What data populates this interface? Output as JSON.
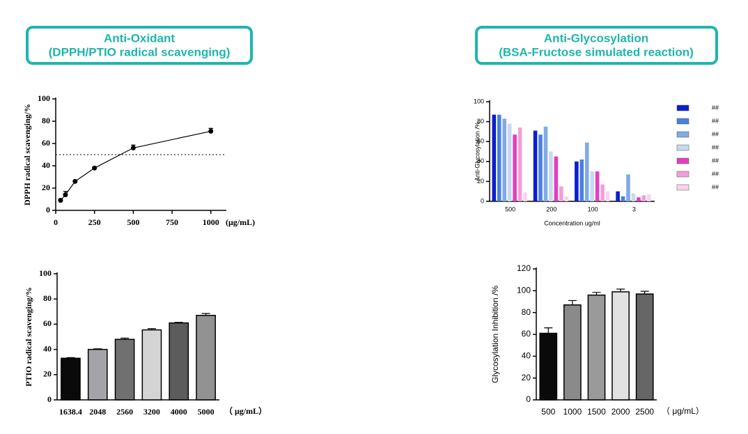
{
  "headers": [
    {
      "line1": "Anti-Oxidant",
      "line2": "(DPPH/PTIO radical scavenging)"
    },
    {
      "line1": "Anti-Glycosylation",
      "line2": "(BSA-Fructose simulated reaction)"
    }
  ],
  "chart_data": [
    {
      "type": "scatter",
      "ylabel": "DPPH radical scavenging/%",
      "xlabel": "(μg/mL)",
      "x": [
        31.25,
        62.5,
        125,
        250,
        500,
        1000
      ],
      "values": [
        9,
        14,
        26,
        38,
        56,
        71
      ],
      "errors": [
        1.5,
        3,
        1,
        1,
        2.5,
        2.5
      ],
      "color": "#000000",
      "reference_y": 50,
      "xlim": [
        0,
        1100
      ],
      "xticks": [
        0,
        250,
        500,
        750,
        1000
      ],
      "ylim": [
        0,
        100
      ],
      "yticks": [
        0,
        20,
        40,
        60,
        80,
        100
      ]
    },
    {
      "type": "bar",
      "ylabel": "PTIO radical scavenging/%",
      "xlabel": "（ μg/mL）",
      "categories": [
        "1638.4",
        "2048",
        "2560",
        "3200",
        "4000",
        "5000"
      ],
      "values": [
        33,
        40,
        48,
        55.5,
        61,
        67
      ],
      "errors": [
        0.5,
        0.5,
        1,
        1,
        0.5,
        1.5
      ],
      "colors": [
        "#0a0a0a",
        "#a4a4a8",
        "#707070",
        "#d4d4d4",
        "#5c5c5c",
        "#929292"
      ],
      "ylim": [
        0,
        100
      ],
      "yticks": [
        0,
        20,
        40,
        60,
        80,
        100
      ]
    },
    {
      "type": "grouped_bar",
      "ylabel": "Anti-Glycosylation /%",
      "xlabel": "Concentration ug/ml",
      "categories": [
        "500",
        "200",
        "100",
        "3"
      ],
      "series": [
        {
          "name": "##",
          "color": "#0a1fd0",
          "values": [
            87,
            71,
            40,
            10
          ]
        },
        {
          "name": "##",
          "color": "#4a80e0",
          "values": [
            87,
            67,
            42,
            5
          ]
        },
        {
          "name": "##",
          "color": "#80aae8",
          "values": [
            83,
            75,
            59,
            27
          ]
        },
        {
          "name": "##",
          "color": "#c8d8f0",
          "values": [
            78,
            50,
            30,
            8
          ]
        },
        {
          "name": "##",
          "color": "#e040c0",
          "values": [
            67,
            45,
            30,
            4
          ]
        },
        {
          "name": "##",
          "color": "#f0a0d8",
          "values": [
            74,
            15,
            17,
            6
          ]
        },
        {
          "name": "##",
          "color": "#f8d4ec",
          "values": [
            9,
            5,
            10,
            7
          ]
        }
      ],
      "ylim": [
        0,
        100
      ],
      "yticks": [
        0,
        20,
        40,
        60,
        80,
        100
      ]
    },
    {
      "type": "bar",
      "ylabel": "Glycosylation Inhibition /%",
      "xlabel": "（ μg/mL）",
      "categories": [
        "500",
        "1000",
        "1500",
        "2000",
        "2500"
      ],
      "values": [
        61,
        87,
        96,
        99,
        97
      ],
      "errors": [
        5,
        4,
        2.5,
        2.5,
        2.5
      ],
      "colors": [
        "#0a0a0a",
        "#8a8a8a",
        "#9a9a9a",
        "#e2e2e2",
        "#666666"
      ],
      "ylim": [
        0,
        120
      ],
      "yticks": [
        0,
        20,
        40,
        60,
        80,
        100,
        120
      ]
    }
  ]
}
